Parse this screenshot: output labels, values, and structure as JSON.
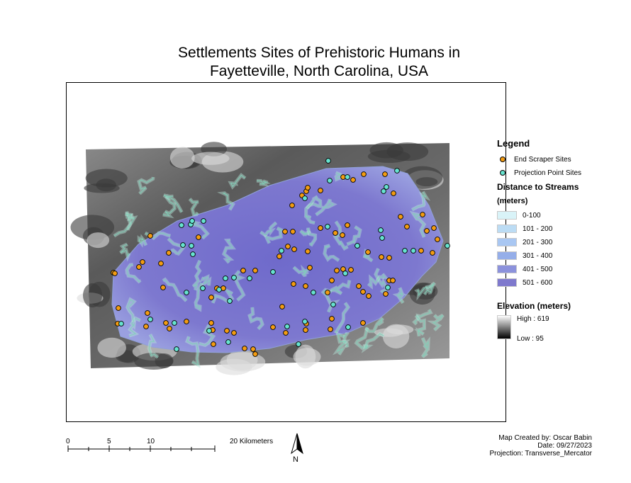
{
  "title_line1": "Settlements Sites of Prehistoric Humans in",
  "title_line2": "Fayetteville, North Carolina, USA",
  "legend": {
    "title": "Legend",
    "end_scraper_label": "End Scraper Sites",
    "end_scraper_color": "#f39c12",
    "projection_label": "Projection Point Sites",
    "projection_color": "#66e3cf",
    "distance_title": "Distance to Streams",
    "distance_unit": "(meters)",
    "distance_classes": [
      {
        "label": "0-100",
        "color": "#d9f3f8"
      },
      {
        "label": "101 - 200",
        "color": "#bcdcf4"
      },
      {
        "label": "201 - 300",
        "color": "#a9c7f2"
      },
      {
        "label": "301 - 400",
        "color": "#95aee9"
      },
      {
        "label": "401 - 500",
        "color": "#8c92dc"
      },
      {
        "label": "501 - 600",
        "color": "#7f79cd"
      }
    ],
    "elevation_title": "Elevation (meters)",
    "elev_high": "High : 619",
    "elev_low": "Low : 95"
  },
  "scale_bar": {
    "labels": [
      "0",
      "5",
      "10",
      "20 Kilometers"
    ]
  },
  "north_label": "N",
  "credits": {
    "line1": "Map Created by: Oscar Babin",
    "line2": "Date: 09/27/2023",
    "line3": "Projection: Transverse_Mercator"
  }
}
